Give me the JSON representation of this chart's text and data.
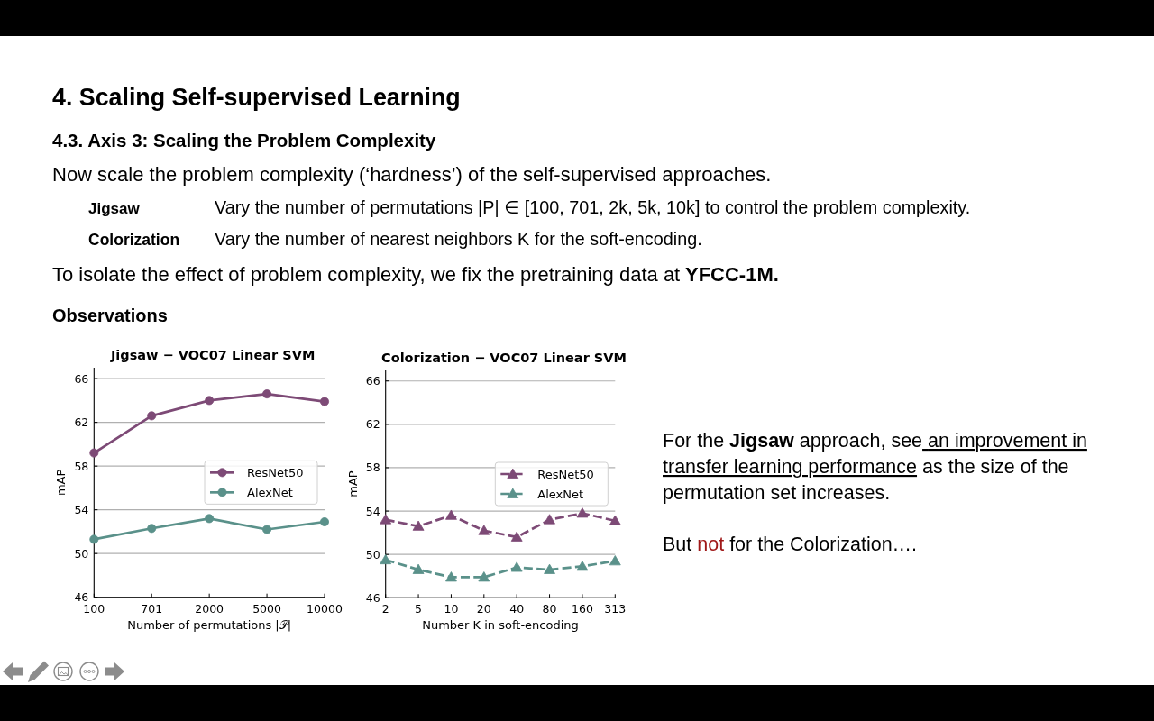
{
  "chart_data": [
    {
      "type": "other",
      "title": "4. Scaling Self-supervised Learning",
      "subtitle": "4.3. Axis 3: Scaling the Problem Complexity",
      "annotations": [
        "Now scale the problem complexity (‘hardness’) of the self-supervised approaches.",
        "Jigsaw",
        "Vary the number of permutations |P| ∈ [100, 701, 2k, 5k, 10k] to control the problem complexity.",
        "Colorization",
        "Vary the number of nearest neighbors K for the soft-encoding.",
        "To isolate the effect of problem complexity, we fix the pretraining data at",
        "YFCC-1M.",
        "Observations"
      ]
    },
    {
      "type": "line",
      "title": "Jigsaw − VOC07 Linear SVM",
      "xlabel": "Number of permutations |𝒫|",
      "ylabel": "mAP",
      "categories": [
        "100",
        "701",
        "2000",
        "5000",
        "10000"
      ],
      "series": [
        {
          "name": "ResNet50",
          "color": "#7d4a76",
          "values": [
            59.2,
            62.6,
            64.0,
            64.6,
            63.9
          ]
        },
        {
          "name": "AlexNet",
          "color": "#5a918a",
          "values": [
            51.3,
            52.3,
            53.2,
            52.2,
            52.9
          ]
        }
      ],
      "ylim": [
        46,
        67
      ],
      "yticks": [
        46,
        50,
        54,
        58,
        62,
        66
      ],
      "grid": "y",
      "legend": "right",
      "marker": "circle",
      "line_style": "solid"
    },
    {
      "type": "line",
      "title": "Colorization − VOC07 Linear SVM",
      "xlabel": "Number K in soft-encoding",
      "ylabel": "mAP",
      "categories": [
        "2",
        "5",
        "10",
        "20",
        "40",
        "80",
        "160",
        "313"
      ],
      "series": [
        {
          "name": "ResNet50",
          "color": "#7d4a76",
          "values": [
            53.2,
            52.6,
            53.6,
            52.2,
            51.6,
            53.2,
            53.8,
            53.1
          ]
        },
        {
          "name": "AlexNet",
          "color": "#5a918a",
          "values": [
            49.5,
            48.6,
            47.9,
            47.9,
            48.8,
            48.6,
            48.9,
            49.4
          ]
        }
      ],
      "ylim": [
        46,
        67
      ],
      "yticks": [
        46,
        50,
        54,
        58,
        62,
        66
      ],
      "grid": "y",
      "legend": "right",
      "marker": "triangle",
      "line_style": "dashed"
    },
    {
      "type": "other",
      "annotations": [
        "For the",
        "Jigsaw",
        "approach, see",
        "an improvement in",
        "transfer learning performance",
        "as the size of the",
        "permutation set increases.",
        "But",
        "not",
        "for the Colorization…."
      ]
    }
  ]
}
